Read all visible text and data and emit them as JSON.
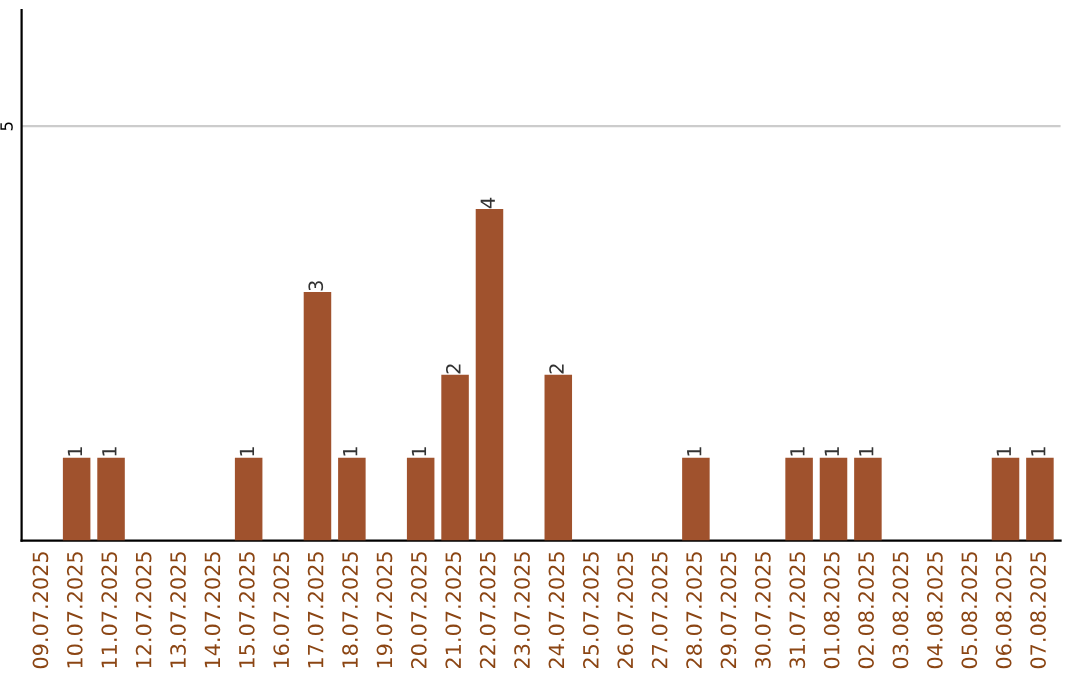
{
  "chart_data": {
    "type": "bar",
    "categories": [
      "09.07.2025",
      "10.07.2025",
      "11.07.2025",
      "12.07.2025",
      "13.07.2025",
      "14.07.2025",
      "15.07.2025",
      "16.07.2025",
      "17.07.2025",
      "18.07.2025",
      "19.07.2025",
      "20.07.2025",
      "21.07.2025",
      "22.07.2025",
      "23.07.2025",
      "24.07.2025",
      "25.07.2025",
      "26.07.2025",
      "27.07.2025",
      "28.07.2025",
      "29.07.2025",
      "30.07.2025",
      "31.07.2025",
      "01.08.2025",
      "02.08.2025",
      "03.08.2025",
      "04.08.2025",
      "05.08.2025",
      "06.08.2025",
      "07.08.2025"
    ],
    "values": [
      0,
      1,
      1,
      0,
      0,
      0,
      1,
      0,
      3,
      1,
      0,
      1,
      2,
      4,
      0,
      2,
      0,
      0,
      0,
      1,
      0,
      0,
      1,
      1,
      1,
      0,
      0,
      0,
      1,
      1
    ],
    "value_labels": [
      null,
      "1",
      "1",
      null,
      null,
      null,
      "1",
      null,
      "3",
      "1",
      null,
      "1",
      "2",
      "4",
      null,
      "2",
      null,
      null,
      null,
      "1",
      null,
      null,
      "1",
      "1",
      "1",
      null,
      null,
      null,
      "1",
      "1"
    ],
    "color": "#a0522d",
    "ylim": [
      0,
      6.4
    ],
    "yticks": [
      5
    ],
    "grid": "y"
  }
}
